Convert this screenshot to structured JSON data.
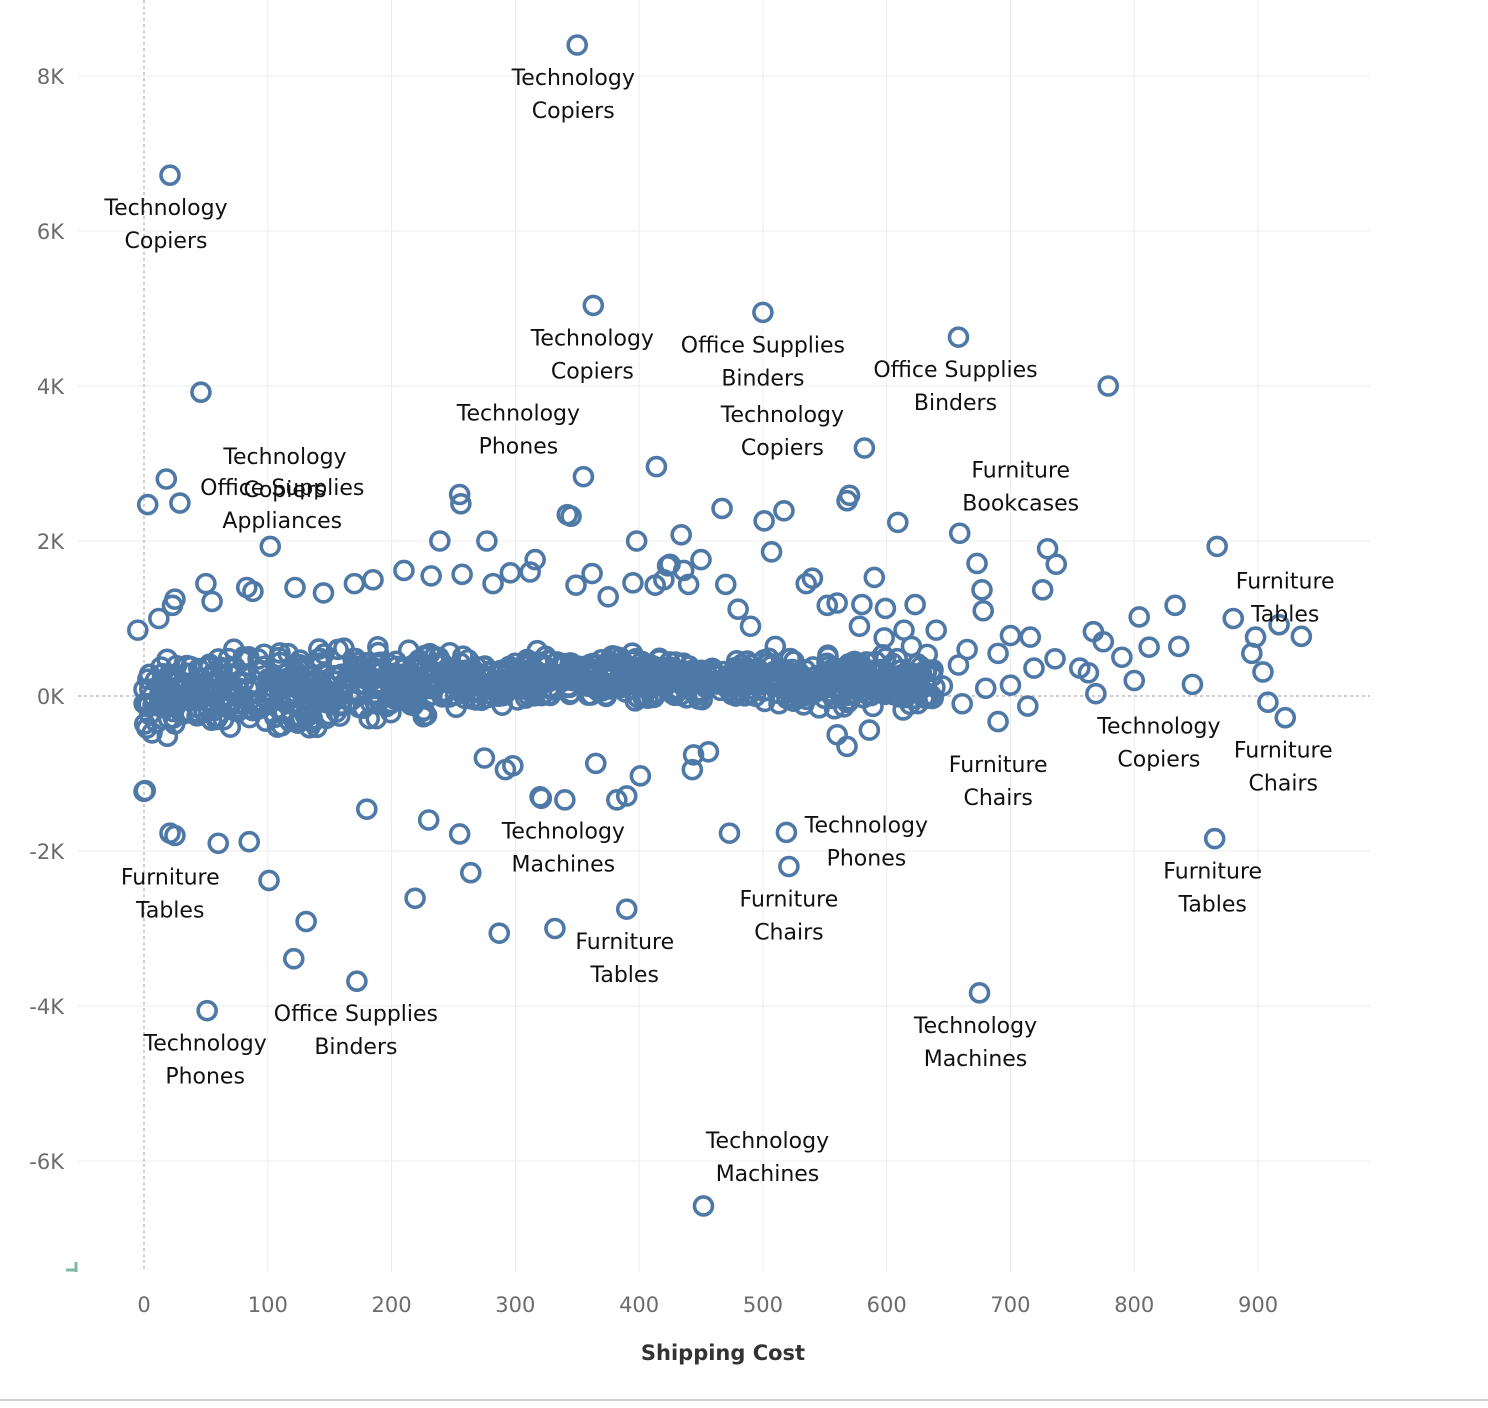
{
  "chart_data": {
    "type": "scatter",
    "title": "",
    "xlabel": "Shipping Cost",
    "ylabel": "",
    "xlim": [
      -55,
      990
    ],
    "ylim": [
      -7300,
      8700
    ],
    "x_ticks": [
      0,
      100,
      200,
      300,
      400,
      500,
      600,
      700,
      800,
      900
    ],
    "y_ticks": [
      8000,
      6000,
      4000,
      2000,
      0,
      -2000,
      -4000,
      -6000
    ],
    "x_tick_labels": [
      "0",
      "100",
      "200",
      "300",
      "400",
      "500",
      "600",
      "700",
      "800",
      "900"
    ],
    "y_tick_labels": [
      "8K",
      "6K",
      "4K",
      "2K",
      "0K",
      "-2K",
      "-4K",
      "-6K"
    ],
    "grid": true,
    "zero_reference_lines": true,
    "marker": "hollow-circle",
    "series_color": "#4e79a7",
    "labeled_points": [
      {
        "x": 350,
        "y": 8400,
        "label": [
          "Technology",
          "Copiers"
        ]
      },
      {
        "x": 21,
        "y": 6720,
        "label": [
          "Technology",
          "Copiers"
        ]
      },
      {
        "x": 363,
        "y": 5040,
        "label": [
          "Technology",
          "Copiers"
        ]
      },
      {
        "x": 500,
        "y": 4950,
        "label": [
          "Office Supplies",
          "Binders"
        ]
      },
      {
        "x": 658,
        "y": 4630,
        "label": [
          "Office Supplies",
          "Binders"
        ]
      },
      {
        "x": 46,
        "y": 3920,
        "label": [
          "Technology",
          "Copiers"
        ]
      },
      {
        "x": 355,
        "y": 2830,
        "label": [
          "Technology",
          "Phones"
        ]
      },
      {
        "x": 582,
        "y": 3200,
        "label": [
          "Technology",
          "Copiers"
        ]
      },
      {
        "x": 18,
        "y": 2800,
        "label": [
          "Office Supplies",
          "Appliances"
        ]
      },
      {
        "x": 659,
        "y": 2100,
        "label": [
          "Furniture",
          "Bookcases"
        ]
      },
      {
        "x": 867,
        "y": 1930,
        "label": [
          "Furniture",
          "Tables"
        ]
      },
      {
        "x": 1,
        "y": -1220,
        "label": [
          "Furniture",
          "Tables"
        ]
      },
      {
        "x": 661,
        "y": -100,
        "label": [
          "Furniture",
          "Chairs"
        ]
      },
      {
        "x": 769,
        "y": 30,
        "label": [
          "Technology",
          "Copiers"
        ]
      },
      {
        "x": 922,
        "y": -280,
        "label": [
          "Furniture",
          "Chairs"
        ]
      },
      {
        "x": 519,
        "y": -1760,
        "label": [
          "Technology",
          "Phones"
        ]
      },
      {
        "x": 321,
        "y": -1320,
        "label": [
          "Technology",
          "Machines"
        ]
      },
      {
        "x": 521,
        "y": -2200,
        "label": [
          "Furniture",
          "Chairs"
        ]
      },
      {
        "x": 390,
        "y": -2750,
        "label": [
          "Furniture",
          "Tables"
        ]
      },
      {
        "x": 865,
        "y": -1840,
        "label": [
          "Furniture",
          "Tables"
        ]
      },
      {
        "x": 51,
        "y": -4060,
        "label": [
          "Technology",
          "Phones"
        ]
      },
      {
        "x": 172,
        "y": -3680,
        "label": [
          "Office Supplies",
          "Binders"
        ]
      },
      {
        "x": 675,
        "y": -3830,
        "label": [
          "Technology",
          "Machines"
        ]
      },
      {
        "x": 452,
        "y": -6580,
        "label": [
          "Technology",
          "Machines"
        ]
      }
    ],
    "outlier_points": [
      [
        779,
        4000
      ],
      [
        414,
        2960
      ],
      [
        3,
        2470
      ],
      [
        29,
        2490
      ],
      [
        102,
        1930
      ],
      [
        255,
        2600
      ],
      [
        256,
        2480
      ],
      [
        239,
        2000
      ],
      [
        277,
        2000
      ],
      [
        342,
        2340
      ],
      [
        345,
        2320
      ],
      [
        398,
        2000
      ],
      [
        467,
        2420
      ],
      [
        501,
        2260
      ],
      [
        517,
        2390
      ],
      [
        568,
        2520
      ],
      [
        570,
        2590
      ],
      [
        609,
        2240
      ],
      [
        673,
        1710
      ],
      [
        677,
        1370
      ],
      [
        678,
        1100
      ],
      [
        730,
        1900
      ],
      [
        726,
        1370
      ],
      [
        737,
        1700
      ],
      [
        804,
        1020
      ],
      [
        833,
        1170
      ],
      [
        812,
        630
      ],
      [
        836,
        640
      ],
      [
        847,
        150
      ],
      [
        880,
        1000
      ],
      [
        898,
        760
      ],
      [
        917,
        920
      ],
      [
        935,
        770
      ],
      [
        904,
        310
      ],
      [
        908,
        -80
      ],
      [
        895,
        550
      ],
      [
        690,
        550
      ],
      [
        716,
        760
      ],
      [
        736,
        480
      ],
      [
        756,
        360
      ],
      [
        767,
        830
      ],
      [
        790,
        500
      ],
      [
        800,
        200
      ],
      [
        763,
        300
      ],
      [
        700,
        780
      ],
      [
        714,
        -130
      ],
      [
        690,
        -330
      ],
      [
        680,
        100
      ],
      [
        665,
        600
      ],
      [
        658,
        400
      ],
      [
        640,
        850
      ],
      [
        623,
        1180
      ],
      [
        614,
        850
      ],
      [
        599,
        1130
      ],
      [
        590,
        1530
      ],
      [
        580,
        1180
      ],
      [
        560,
        1200
      ],
      [
        552,
        1170
      ],
      [
        540,
        1520
      ],
      [
        535,
        1450
      ],
      [
        507,
        1860
      ],
      [
        450,
        1760
      ],
      [
        434,
        2080
      ],
      [
        425,
        1700
      ],
      [
        420,
        1500
      ],
      [
        470,
        1440
      ],
      [
        480,
        1120
      ],
      [
        490,
        900
      ],
      [
        510,
        640
      ],
      [
        525,
        450
      ],
      [
        560,
        -500
      ],
      [
        568,
        -650
      ],
      [
        586,
        -440
      ],
      [
        444,
        -760
      ],
      [
        456,
        -720
      ],
      [
        443,
        -950
      ],
      [
        473,
        -1770
      ],
      [
        401,
        -1030
      ],
      [
        390,
        -1290
      ],
      [
        382,
        -1340
      ],
      [
        365,
        -870
      ],
      [
        340,
        -1340
      ],
      [
        320,
        -1300
      ],
      [
        332,
        -3000
      ],
      [
        287,
        -3060
      ],
      [
        264,
        -2280
      ],
      [
        219,
        -2610
      ],
      [
        131,
        -2910
      ],
      [
        121,
        -3390
      ],
      [
        101,
        -2380
      ],
      [
        60,
        -1900
      ],
      [
        85,
        -1880
      ],
      [
        25,
        -1800
      ],
      [
        21,
        -1770
      ],
      [
        0,
        -1230
      ],
      [
        180,
        -1460
      ],
      [
        230,
        -1600
      ],
      [
        255,
        -1780
      ],
      [
        292,
        -950
      ],
      [
        275,
        -800
      ],
      [
        298,
        -900
      ],
      [
        -5,
        850
      ],
      [
        12,
        1000
      ],
      [
        23,
        1170
      ],
      [
        25,
        1250
      ],
      [
        50,
        1450
      ],
      [
        55,
        1220
      ],
      [
        83,
        1400
      ],
      [
        88,
        1350
      ],
      [
        122,
        1400
      ],
      [
        145,
        1330
      ],
      [
        170,
        1450
      ],
      [
        185,
        1500
      ],
      [
        210,
        1620
      ],
      [
        232,
        1550
      ],
      [
        257,
        1570
      ],
      [
        282,
        1450
      ],
      [
        296,
        1590
      ],
      [
        312,
        1600
      ],
      [
        316,
        1760
      ],
      [
        349,
        1430
      ],
      [
        362,
        1580
      ],
      [
        375,
        1280
      ],
      [
        395,
        1460
      ],
      [
        413,
        1430
      ],
      [
        423,
        1680
      ],
      [
        436,
        1620
      ],
      [
        440,
        1440
      ],
      [
        578,
        900
      ],
      [
        598,
        750
      ],
      [
        628,
        300
      ],
      [
        645,
        130
      ],
      [
        719,
        360
      ],
      [
        775,
        700
      ],
      [
        620,
        640
      ],
      [
        605,
        420
      ],
      [
        612,
        340
      ],
      [
        700,
        140
      ]
    ],
    "dense_band": [
      {
        "x_from": 0,
        "x_to": 60,
        "y_center": -20,
        "half_height": 420
      },
      {
        "x_from": 60,
        "x_to": 140,
        "y_center": 80,
        "half_height": 470
      },
      {
        "x_from": 140,
        "x_to": 230,
        "y_center": 160,
        "half_height": 430
      },
      {
        "x_from": 230,
        "x_to": 330,
        "y_center": 220,
        "half_height": 330
      },
      {
        "x_from": 330,
        "x_to": 420,
        "y_center": 240,
        "half_height": 270
      },
      {
        "x_from": 420,
        "x_to": 520,
        "y_center": 200,
        "half_height": 260
      },
      {
        "x_from": 520,
        "x_to": 640,
        "y_center": 180,
        "half_height": 320
      }
    ]
  }
}
